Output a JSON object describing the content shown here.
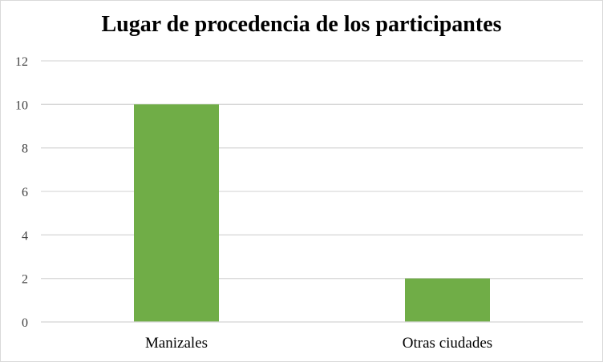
{
  "chart_data": {
    "type": "bar",
    "title": "Lugar de procedencia de los participantes",
    "categories": [
      "Manizales",
      "Otras ciudades"
    ],
    "values": [
      10,
      2
    ],
    "xlabel": "",
    "ylabel": "",
    "ylim": [
      0,
      12
    ],
    "yticks": [
      0,
      2,
      4,
      6,
      8,
      10,
      12
    ],
    "grid": true,
    "legend": "none",
    "colors": {
      "bar": "#70ad47",
      "grid": "#d9d9d9",
      "axis": "#d9d9d9"
    }
  }
}
